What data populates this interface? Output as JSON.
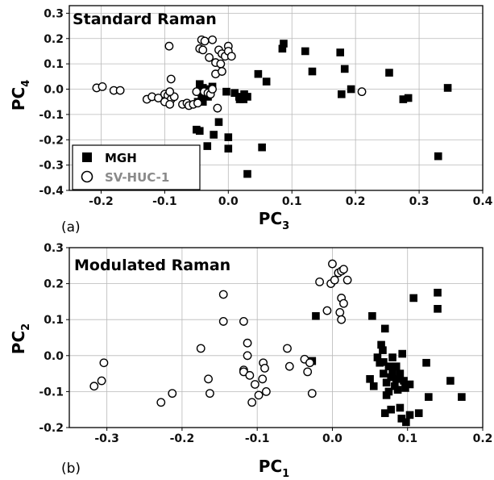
{
  "chart_data": [
    {
      "type": "scatter",
      "panel_label": "(a)",
      "title": "Standard Raman",
      "xlabel": "PC",
      "xlabel_sub": "3",
      "ylabel": "PC",
      "ylabel_sub": "4",
      "xlim": [
        -0.25,
        0.4
      ],
      "ylim": [
        -0.4,
        0.33
      ],
      "xticks": [
        -0.2,
        -0.1,
        0.0,
        0.1,
        0.2,
        0.3,
        0.4
      ],
      "xtick_labels": [
        "-0.2",
        "-0.1",
        "0.0",
        "0.1",
        "0.2",
        "0.3",
        "0.4"
      ],
      "yticks": [
        -0.4,
        -0.3,
        -0.2,
        -0.1,
        0.0,
        0.1,
        0.2,
        0.3
      ],
      "ytick_labels": [
        "-0.4",
        "-0.3",
        "-0.2",
        "-0.1",
        "0.0",
        "0.1",
        "0.2",
        "0.3"
      ],
      "grid": true,
      "legend_position": "bottom-left",
      "series": [
        {
          "name": "MGH",
          "marker": "filled-square",
          "color": "#000000",
          "points": [
            [
              0.087,
              0.18
            ],
            [
              0.085,
              0.16
            ],
            [
              0.121,
              0.15
            ],
            [
              0.176,
              0.145
            ],
            [
              0.183,
              0.08
            ],
            [
              0.132,
              0.07
            ],
            [
              0.253,
              0.065
            ],
            [
              0.047,
              0.06
            ],
            [
              0.06,
              0.03
            ],
            [
              0.345,
              0.005
            ],
            [
              0.193,
              0.0
            ],
            [
              0.178,
              -0.02
            ],
            [
              0.275,
              -0.04
            ],
            [
              0.283,
              -0.035
            ],
            [
              -0.045,
              0.02
            ],
            [
              -0.025,
              0.01
            ],
            [
              -0.04,
              0.005
            ],
            [
              -0.033,
              0.0
            ],
            [
              -0.046,
              -0.01
            ],
            [
              -0.042,
              -0.02
            ],
            [
              -0.003,
              -0.01
            ],
            [
              0.01,
              -0.015
            ],
            [
              0.017,
              -0.03
            ],
            [
              0.025,
              -0.02
            ],
            [
              0.024,
              -0.04
            ],
            [
              0.03,
              -0.03
            ],
            [
              0.018,
              -0.04
            ],
            [
              -0.032,
              -0.03
            ],
            [
              -0.048,
              -0.05
            ],
            [
              -0.04,
              -0.05
            ],
            [
              -0.015,
              -0.13
            ],
            [
              -0.05,
              -0.16
            ],
            [
              -0.045,
              -0.165
            ],
            [
              -0.023,
              -0.18
            ],
            [
              0.0,
              -0.19
            ],
            [
              0.0,
              -0.235
            ],
            [
              -0.033,
              -0.225
            ],
            [
              0.053,
              -0.23
            ],
            [
              0.03,
              -0.335
            ],
            [
              0.33,
              -0.265
            ]
          ]
        },
        {
          "name": "SV-HUC-1",
          "marker": "open-circle",
          "color": "#000000",
          "points": [
            [
              -0.207,
              0.005
            ],
            [
              -0.198,
              0.01
            ],
            [
              -0.18,
              -0.005
            ],
            [
              -0.17,
              -0.005
            ],
            [
              -0.128,
              -0.04
            ],
            [
              -0.12,
              -0.03
            ],
            [
              -0.11,
              -0.035
            ],
            [
              -0.1,
              -0.02
            ],
            [
              -0.095,
              -0.025
            ],
            [
              -0.09,
              -0.04
            ],
            [
              -0.085,
              -0.03
            ],
            [
              -0.092,
              -0.01
            ],
            [
              -0.1,
              -0.05
            ],
            [
              -0.092,
              -0.06
            ],
            [
              -0.09,
              0.04
            ],
            [
              -0.093,
              0.17
            ],
            [
              -0.072,
              -0.06
            ],
            [
              -0.065,
              -0.055
            ],
            [
              -0.062,
              -0.065
            ],
            [
              -0.055,
              -0.06
            ],
            [
              -0.048,
              -0.055
            ],
            [
              -0.05,
              -0.01
            ],
            [
              -0.038,
              -0.01
            ],
            [
              -0.032,
              -0.015
            ],
            [
              -0.028,
              -0.02
            ],
            [
              -0.025,
              0.0
            ],
            [
              -0.017,
              -0.075
            ],
            [
              -0.042,
              0.195
            ],
            [
              -0.037,
              0.19
            ],
            [
              -0.025,
              0.195
            ],
            [
              -0.045,
              0.16
            ],
            [
              -0.04,
              0.155
            ],
            [
              -0.03,
              0.125
            ],
            [
              -0.015,
              0.155
            ],
            [
              -0.01,
              0.14
            ],
            [
              -0.005,
              0.13
            ],
            [
              -0.02,
              0.105
            ],
            [
              -0.012,
              0.1
            ],
            [
              0.0,
              0.17
            ],
            [
              0.0,
              0.15
            ],
            [
              0.005,
              0.13
            ],
            [
              -0.02,
              0.06
            ],
            [
              -0.01,
              0.07
            ],
            [
              0.21,
              -0.01
            ]
          ]
        }
      ]
    },
    {
      "type": "scatter",
      "panel_label": "(b)",
      "title": "Modulated Raman",
      "xlabel": "PC",
      "xlabel_sub": "1",
      "ylabel": "PC",
      "ylabel_sub": "2",
      "xlim": [
        -0.35,
        0.2
      ],
      "ylim": [
        -0.2,
        0.3
      ],
      "xticks": [
        -0.3,
        -0.2,
        -0.1,
        0.0,
        0.1,
        0.2
      ],
      "xtick_labels": [
        "-0.3",
        "-0.2",
        "-0.1",
        "0.0",
        "0.1",
        "0.2"
      ],
      "yticks": [
        -0.2,
        -0.1,
        0.0,
        0.1,
        0.2,
        0.3
      ],
      "ytick_labels": [
        "-0.2",
        "-0.1",
        "0.0",
        "0.1",
        "0.2",
        "0.3"
      ],
      "grid": true,
      "series": [
        {
          "name": "MGH",
          "marker": "filled-square",
          "color": "#000000",
          "points": [
            [
              -0.022,
              0.11
            ],
            [
              -0.027,
              -0.015
            ],
            [
              -0.027,
              -0.015
            ],
            [
              0.053,
              0.11
            ],
            [
              0.07,
              0.075
            ],
            [
              0.065,
              0.03
            ],
            [
              0.067,
              0.015
            ],
            [
              0.06,
              -0.005
            ],
            [
              0.063,
              -0.02
            ],
            [
              0.068,
              -0.018
            ],
            [
              0.075,
              -0.03
            ],
            [
              0.085,
              -0.03
            ],
            [
              0.08,
              -0.005
            ],
            [
              0.09,
              -0.05
            ],
            [
              0.095,
              -0.07
            ],
            [
              0.097,
              -0.09
            ],
            [
              0.093,
              0.005
            ],
            [
              0.103,
              -0.08
            ],
            [
              0.108,
              0.16
            ],
            [
              0.14,
              0.175
            ],
            [
              0.14,
              0.13
            ],
            [
              0.05,
              -0.065
            ],
            [
              0.055,
              -0.085
            ],
            [
              0.072,
              -0.075
            ],
            [
              0.078,
              -0.06
            ],
            [
              0.083,
              -0.085
            ],
            [
              0.087,
              -0.095
            ],
            [
              0.075,
              -0.1
            ],
            [
              0.078,
              -0.15
            ],
            [
              0.09,
              -0.145
            ],
            [
              0.092,
              -0.175
            ],
            [
              0.098,
              -0.185
            ],
            [
              0.103,
              -0.165
            ],
            [
              0.115,
              -0.16
            ],
            [
              0.125,
              -0.02
            ],
            [
              0.128,
              -0.115
            ],
            [
              0.157,
              -0.07
            ],
            [
              0.172,
              -0.115
            ],
            [
              0.07,
              -0.16
            ],
            [
              0.068,
              -0.05
            ],
            [
              0.072,
              -0.11
            ],
            [
              0.08,
              -0.045
            ],
            [
              0.085,
              -0.065
            ]
          ]
        },
        {
          "name": "SV-HUC-1",
          "marker": "open-circle",
          "color": "#000000",
          "points": [
            [
              -0.317,
              -0.085
            ],
            [
              -0.307,
              -0.07
            ],
            [
              -0.304,
              -0.02
            ],
            [
              -0.228,
              -0.13
            ],
            [
              -0.213,
              -0.105
            ],
            [
              -0.175,
              0.02
            ],
            [
              -0.165,
              -0.065
            ],
            [
              -0.163,
              -0.105
            ],
            [
              -0.145,
              0.17
            ],
            [
              -0.145,
              0.095
            ],
            [
              -0.118,
              0.095
            ],
            [
              -0.118,
              -0.04
            ],
            [
              -0.118,
              -0.045
            ],
            [
              -0.113,
              0.035
            ],
            [
              -0.113,
              0.0
            ],
            [
              -0.11,
              -0.055
            ],
            [
              -0.107,
              -0.13
            ],
            [
              -0.103,
              -0.08
            ],
            [
              -0.098,
              -0.11
            ],
            [
              -0.093,
              -0.065
            ],
            [
              -0.092,
              -0.02
            ],
            [
              -0.09,
              -0.035
            ],
            [
              -0.088,
              -0.1
            ],
            [
              -0.06,
              0.02
            ],
            [
              -0.057,
              -0.03
            ],
            [
              -0.037,
              -0.01
            ],
            [
              -0.033,
              -0.045
            ],
            [
              -0.03,
              -0.02
            ],
            [
              -0.027,
              -0.105
            ],
            [
              -0.017,
              0.205
            ],
            [
              -0.007,
              0.125
            ],
            [
              -0.002,
              0.2
            ],
            [
              0.0,
              0.255
            ],
            [
              0.003,
              0.21
            ],
            [
              0.008,
              0.23
            ],
            [
              0.012,
              0.235
            ],
            [
              0.015,
              0.24
            ],
            [
              0.02,
              0.21
            ],
            [
              0.012,
              0.16
            ],
            [
              0.015,
              0.145
            ],
            [
              0.01,
              0.12
            ],
            [
              0.012,
              0.1
            ]
          ]
        }
      ]
    }
  ]
}
